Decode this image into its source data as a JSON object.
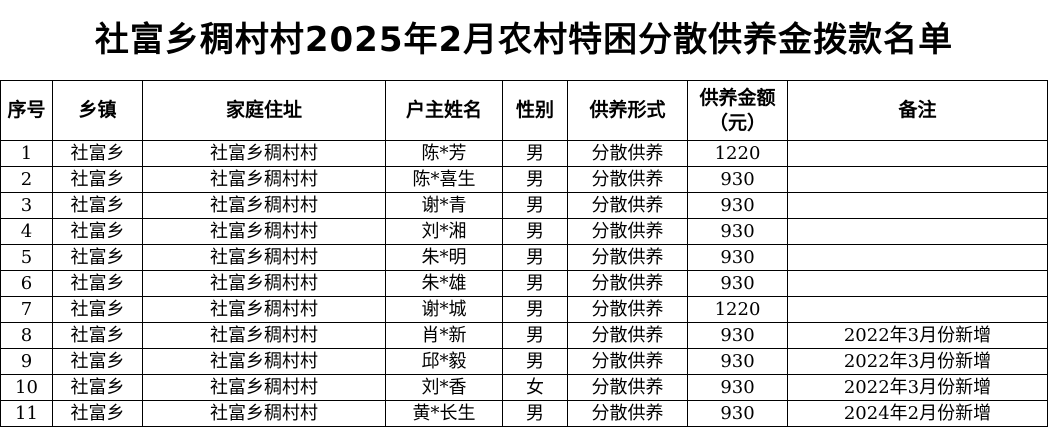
{
  "title": "社富乡稠村村2025年2月农村特困分散供养金拨款名单",
  "headers": {
    "seq": "序号",
    "town": "乡镇",
    "address": "家庭住址",
    "head_name": "户主姓名",
    "sex": "性别",
    "support_type": "供养形式",
    "amount_line1": "供养金额",
    "amount_line2": "（元）",
    "note": "备注"
  },
  "rows": [
    {
      "seq": "1",
      "town": "社富乡",
      "address": "社富乡稠村村",
      "name": "陈*芳",
      "sex": "男",
      "type": "分散供养",
      "amount": "1220",
      "note": ""
    },
    {
      "seq": "2",
      "town": "社富乡",
      "address": "社富乡稠村村",
      "name": "陈*喜生",
      "sex": "男",
      "type": "分散供养",
      "amount": "930",
      "note": ""
    },
    {
      "seq": "3",
      "town": "社富乡",
      "address": "社富乡稠村村",
      "name": "谢*青",
      "sex": "男",
      "type": "分散供养",
      "amount": "930",
      "note": ""
    },
    {
      "seq": "4",
      "town": "社富乡",
      "address": "社富乡稠村村",
      "name": "刘*湘",
      "sex": "男",
      "type": "分散供养",
      "amount": "930",
      "note": ""
    },
    {
      "seq": "5",
      "town": "社富乡",
      "address": "社富乡稠村村",
      "name": "朱*明",
      "sex": "男",
      "type": "分散供养",
      "amount": "930",
      "note": ""
    },
    {
      "seq": "6",
      "town": "社富乡",
      "address": "社富乡稠村村",
      "name": "朱*雄",
      "sex": "男",
      "type": "分散供养",
      "amount": "930",
      "note": ""
    },
    {
      "seq": "7",
      "town": "社富乡",
      "address": "社富乡稠村村",
      "name": "谢*城",
      "sex": "男",
      "type": "分散供养",
      "amount": "1220",
      "note": ""
    },
    {
      "seq": "8",
      "town": "社富乡",
      "address": "社富乡稠村村",
      "name": "肖*新",
      "sex": "男",
      "type": "分散供养",
      "amount": "930",
      "note": "2022年3月份新增"
    },
    {
      "seq": "9",
      "town": "社富乡",
      "address": "社富乡稠村村",
      "name": "邱*毅",
      "sex": "男",
      "type": "分散供养",
      "amount": "930",
      "note": "2022年3月份新增"
    },
    {
      "seq": "10",
      "town": "社富乡",
      "address": "社富乡稠村村",
      "name": "刘*香",
      "sex": "女",
      "type": "分散供养",
      "amount": "930",
      "note": "2022年3月份新增"
    },
    {
      "seq": "11",
      "town": "社富乡",
      "address": "社富乡稠村村",
      "name": "黄*长生",
      "sex": "男",
      "type": "分散供养",
      "amount": "930",
      "note": "2024年2月份新增"
    }
  ]
}
